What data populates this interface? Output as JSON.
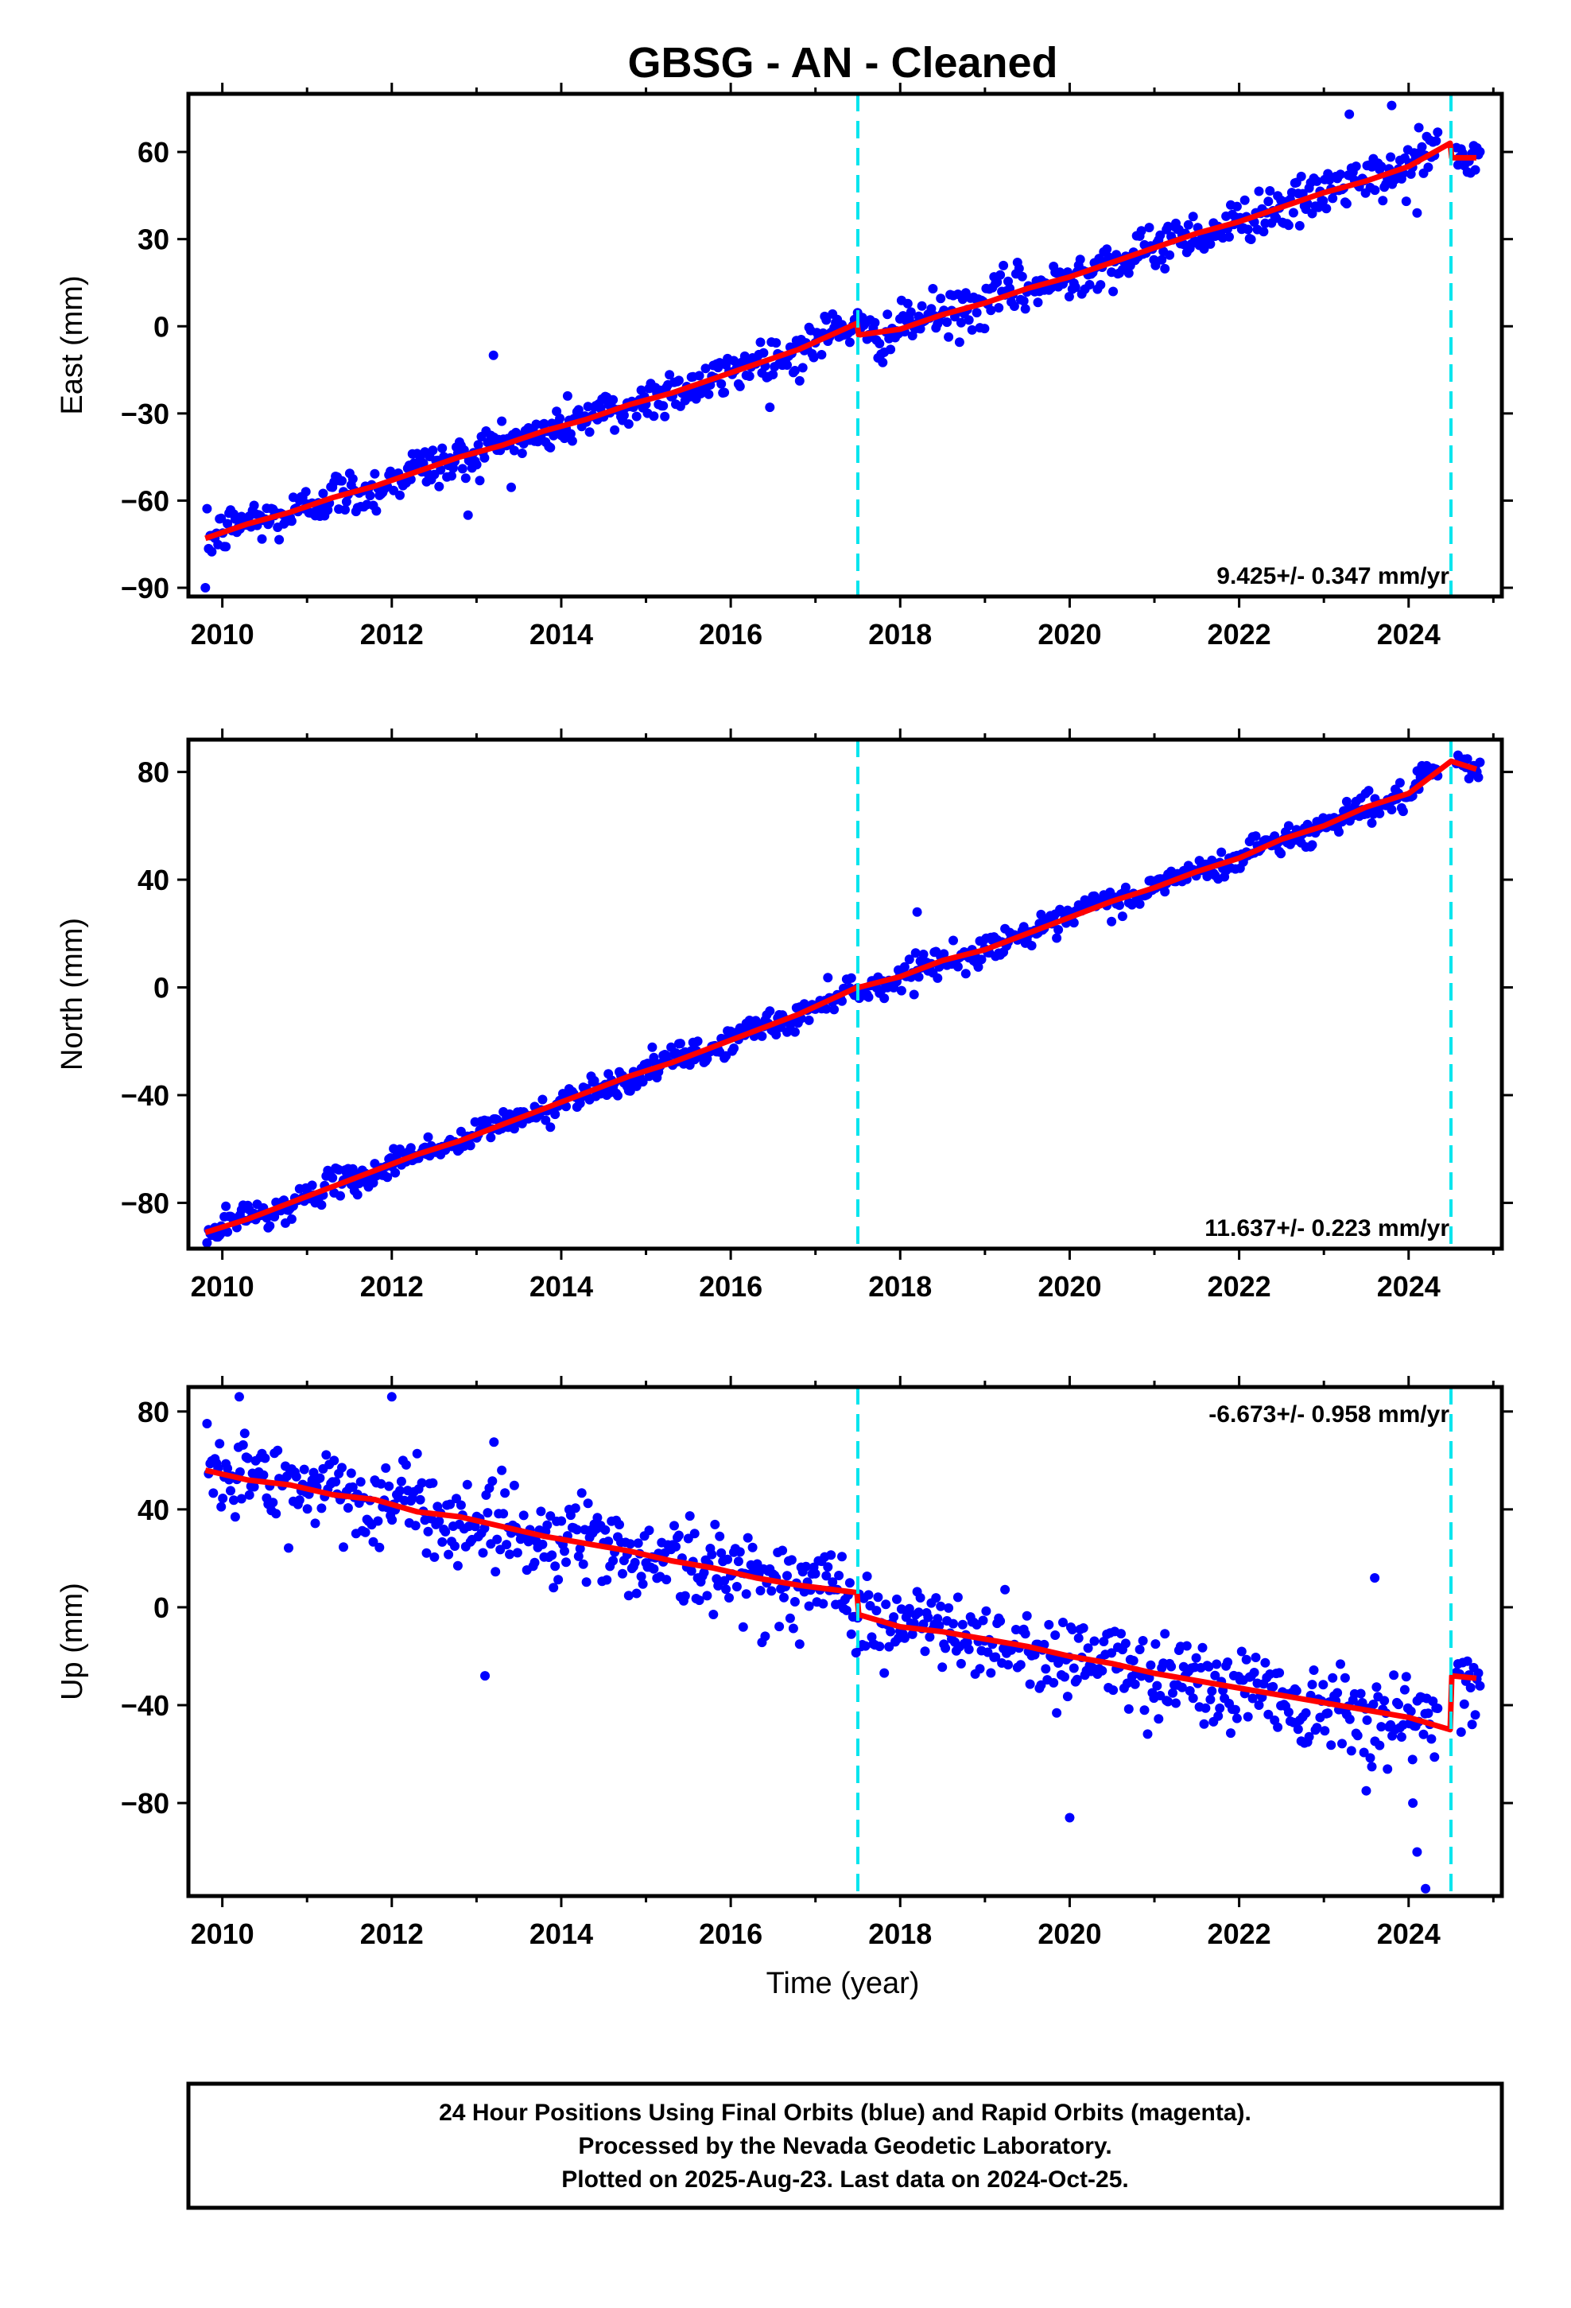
{
  "title": "GBSG  - AN - Cleaned",
  "chart_data": [
    {
      "type": "scatter",
      "panel": "east",
      "ylabel": "East (mm)",
      "xlim": [
        2009.6,
        2025.1
      ],
      "ylim": [
        -93,
        80
      ],
      "yticks": [
        -90,
        -60,
        -30,
        0,
        30,
        60
      ],
      "ytick_labels": [
        "−90",
        "−60",
        "−30",
        "0",
        "30",
        "60"
      ],
      "xticks": [
        2010,
        2012,
        2014,
        2016,
        2018,
        2020,
        2022,
        2024
      ],
      "xtick_labels": [
        "2010",
        "2012",
        "2014",
        "2016",
        "2018",
        "2020",
        "2022",
        "2024"
      ],
      "rate_text": "9.425+/- 0.347 mm/yr",
      "rate_position": "bottom-right",
      "breaks": [
        2017.5,
        2024.5
      ],
      "series": [
        {
          "kind": "model-fit",
          "color": "#ff0000",
          "x": [
            2009.8,
            2010.3,
            2010.8,
            2011.3,
            2011.8,
            2012.3,
            2012.8,
            2013.3,
            2013.8,
            2014.3,
            2014.8,
            2015.3,
            2015.8,
            2016.3,
            2016.8,
            2017.49,
            2017.51,
            2018.0,
            2018.5,
            2019.0,
            2019.5,
            2020.0,
            2020.5,
            2021.0,
            2021.5,
            2022.0,
            2022.5,
            2023.0,
            2023.5,
            2024.0,
            2024.49,
            2024.51,
            2024.8
          ],
          "y": [
            -73,
            -68,
            -64,
            -59,
            -55,
            -50,
            -45,
            -41,
            -36,
            -32,
            -27,
            -23,
            -18,
            -13,
            -8,
            1,
            -3,
            -1,
            4,
            8,
            13,
            17,
            22,
            27,
            32,
            36,
            41,
            46,
            50,
            55,
            63,
            58,
            58
          ]
        },
        {
          "kind": "daily-positions",
          "color": "#0000ff",
          "x": [
            2009.8,
            2010.3,
            2010.8,
            2011.3,
            2011.8,
            2012.3,
            2012.8,
            2013.3,
            2013.8,
            2014.3,
            2014.8,
            2015.3,
            2015.8,
            2016.3,
            2016.8,
            2017.4,
            2017.6,
            2018.0,
            2018.5,
            2019.0,
            2019.5,
            2020.0,
            2020.5,
            2021.0,
            2021.5,
            2022.0,
            2022.5,
            2023.0,
            2023.5,
            2024.0,
            2024.3,
            2024.6,
            2024.8
          ],
          "y": [
            -73,
            -68,
            -64,
            -59,
            -55,
            -50,
            -45,
            -41,
            -36,
            -32,
            -27,
            -23,
            -18,
            -13,
            -8,
            0,
            -3,
            -1,
            4,
            8,
            13,
            17,
            22,
            27,
            32,
            36,
            41,
            46,
            50,
            55,
            61,
            58,
            58
          ],
          "spread": 4,
          "outliers_x": [
            2009.8,
            2013.2,
            2012.9,
            2023.3,
            2023.8,
            2024.1
          ],
          "outliers_y": [
            -90,
            -10,
            -65,
            73,
            76,
            39
          ]
        }
      ]
    },
    {
      "type": "scatter",
      "panel": "north",
      "ylabel": "North (mm)",
      "xlim": [
        2009.6,
        2025.1
      ],
      "ylim": [
        -97,
        92
      ],
      "yticks": [
        -80,
        -40,
        0,
        40,
        80
      ],
      "ytick_labels": [
        "−80",
        "−40",
        "0",
        "40",
        "80"
      ],
      "xticks": [
        2010,
        2012,
        2014,
        2016,
        2018,
        2020,
        2022,
        2024
      ],
      "xtick_labels": [
        "2010",
        "2012",
        "2014",
        "2016",
        "2018",
        "2020",
        "2022",
        "2024"
      ],
      "rate_text": "11.637+/- 0.223 mm/yr",
      "rate_position": "bottom-right",
      "breaks": [
        2017.5,
        2024.5
      ],
      "series": [
        {
          "kind": "model-fit",
          "color": "#ff0000",
          "x": [
            2009.8,
            2010.3,
            2010.8,
            2011.3,
            2011.8,
            2012.3,
            2012.8,
            2013.3,
            2013.8,
            2014.3,
            2014.8,
            2015.3,
            2015.8,
            2016.3,
            2016.8,
            2017.49,
            2017.51,
            2018.0,
            2018.5,
            2019.0,
            2019.5,
            2020.0,
            2020.5,
            2021.0,
            2021.5,
            2022.0,
            2022.5,
            2023.0,
            2023.5,
            2024.0,
            2024.5,
            2024.8
          ],
          "y": [
            -91,
            -86,
            -80,
            -74,
            -68,
            -62,
            -57,
            -51,
            -45,
            -39,
            -33,
            -28,
            -22,
            -16,
            -10,
            0,
            0,
            4,
            10,
            14,
            20,
            26,
            32,
            37,
            43,
            48,
            55,
            60,
            67,
            72,
            84,
            81
          ]
        },
        {
          "kind": "daily-positions",
          "color": "#0000ff",
          "x": [
            2009.8,
            2010.3,
            2010.8,
            2011.3,
            2011.8,
            2012.3,
            2012.8,
            2013.3,
            2013.8,
            2014.3,
            2014.8,
            2015.3,
            2015.8,
            2016.3,
            2016.8,
            2017.4,
            2017.6,
            2018.0,
            2018.5,
            2019.0,
            2019.5,
            2020.0,
            2020.5,
            2021.0,
            2021.5,
            2022.0,
            2022.5,
            2023.0,
            2023.5,
            2024.0,
            2024.3,
            2024.6,
            2024.8
          ],
          "y": [
            -91,
            -86,
            -80,
            -74,
            -68,
            -62,
            -57,
            -51,
            -45,
            -39,
            -33,
            -28,
            -22,
            -16,
            -10,
            -1,
            0,
            4,
            10,
            14,
            20,
            26,
            32,
            37,
            43,
            48,
            55,
            60,
            67,
            72,
            78,
            84,
            81
          ],
          "spread": 2.5,
          "outliers_x": [
            2018.2,
            2023.8
          ],
          "outliers_y": [
            28,
            66
          ]
        }
      ]
    },
    {
      "type": "scatter",
      "panel": "up",
      "ylabel": "Up (mm)",
      "xlabel": "Time (year)",
      "xlim": [
        2009.6,
        2025.1
      ],
      "ylim": [
        -118,
        90
      ],
      "yticks": [
        -80,
        -40,
        0,
        40,
        80
      ],
      "ytick_labels": [
        "−80",
        "−40",
        "0",
        "40",
        "80"
      ],
      "xticks": [
        2010,
        2012,
        2014,
        2016,
        2018,
        2020,
        2022,
        2024
      ],
      "xtick_labels": [
        "2010",
        "2012",
        "2014",
        "2016",
        "2018",
        "2020",
        "2022",
        "2024"
      ],
      "rate_text": "-6.673+/- 0.958 mm/yr",
      "rate_position": "top-right",
      "breaks": [
        2017.5,
        2024.5
      ],
      "series": [
        {
          "kind": "model-fit",
          "color": "#ff0000",
          "x": [
            2009.8,
            2010.3,
            2010.8,
            2011.3,
            2011.8,
            2012.3,
            2012.8,
            2013.3,
            2013.8,
            2014.3,
            2014.8,
            2015.3,
            2015.8,
            2016.3,
            2016.8,
            2017.49,
            2017.51,
            2018.0,
            2018.5,
            2019.0,
            2019.5,
            2020.0,
            2020.5,
            2021.0,
            2021.5,
            2022.0,
            2022.5,
            2023.0,
            2023.5,
            2024.0,
            2024.49,
            2024.51,
            2024.8
          ],
          "y": [
            56,
            52,
            50,
            46,
            44,
            39,
            37,
            33,
            29,
            26,
            23,
            19,
            16,
            12,
            9,
            6,
            -3,
            -8,
            -10,
            -13,
            -16,
            -20,
            -23,
            -27,
            -30,
            -33,
            -36,
            -39,
            -42,
            -45,
            -50,
            -28,
            -29
          ]
        },
        {
          "kind": "daily-positions",
          "color": "#0000ff",
          "x": [
            2009.8,
            2010.3,
            2010.8,
            2011.3,
            2011.8,
            2012.3,
            2012.8,
            2013.3,
            2013.8,
            2014.3,
            2014.8,
            2015.3,
            2015.8,
            2016.3,
            2016.8,
            2017.4,
            2017.6,
            2018.0,
            2018.5,
            2019.0,
            2019.5,
            2020.0,
            2020.5,
            2021.0,
            2021.5,
            2022.0,
            2022.5,
            2023.0,
            2023.5,
            2024.0,
            2024.3,
            2024.6,
            2024.8
          ],
          "y": [
            58,
            52,
            50,
            48,
            44,
            40,
            37,
            33,
            30,
            28,
            23,
            19,
            16,
            12,
            9,
            5,
            -4,
            -8,
            -10,
            -13,
            -16,
            -20,
            -23,
            -27,
            -30,
            -33,
            -36,
            -39,
            -42,
            -46,
            -50,
            -28,
            -29
          ],
          "spread": 9,
          "outliers_x": [
            2010.2,
            2012.0,
            2013.1,
            2020.0,
            2023.6,
            2024.1,
            2024.2,
            2024.05,
            2023.5
          ],
          "outliers_y": [
            86,
            86,
            -28,
            -86,
            12,
            -100,
            -115,
            -80,
            -75
          ]
        }
      ]
    }
  ],
  "footer": {
    "line1": "24 Hour Positions Using Final Orbits (blue) and Rapid Orbits (magenta).",
    "line2": "Processed by the Nevada Geodetic Laboratory.",
    "line3": "Plotted on 2025-Aug-23. Last data on 2024-Oct-25."
  }
}
